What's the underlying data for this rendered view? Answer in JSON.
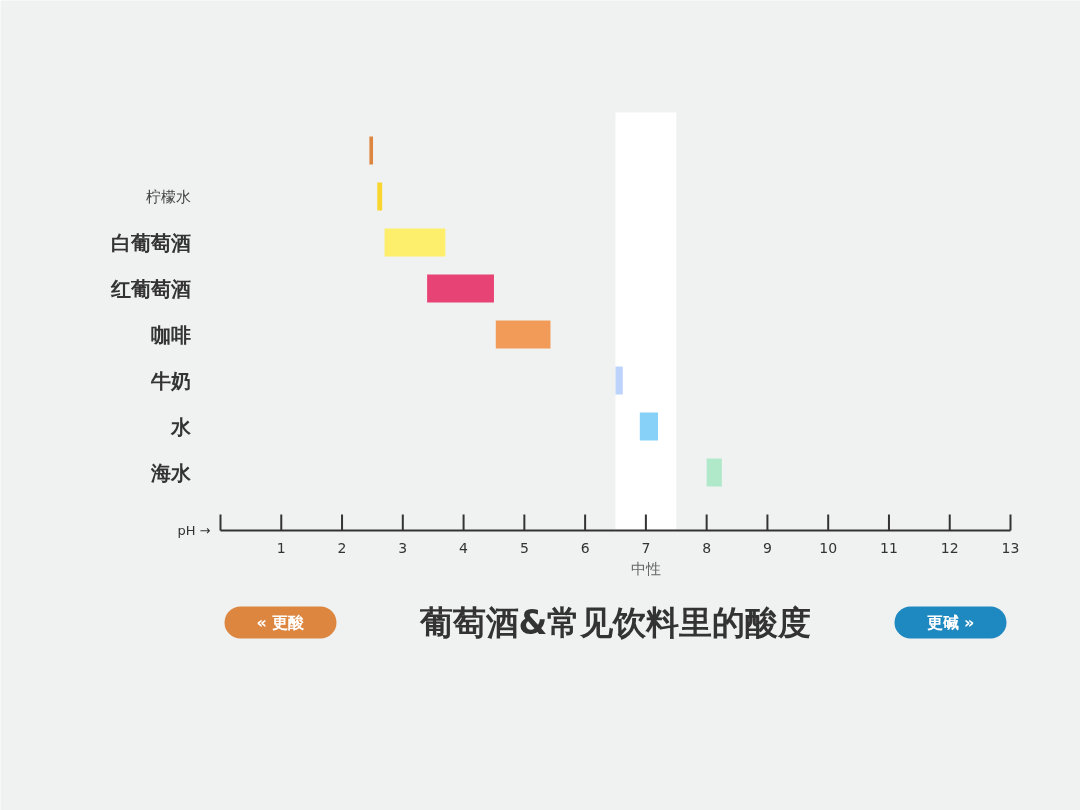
{
  "chart_data": {
    "type": "bar",
    "orientation": "horizontal",
    "title": "葡萄酒&常见饮料里的酸度",
    "xlabel": "pH →",
    "categories": [
      null,
      "柠檬水",
      "白葡萄酒",
      "红葡萄酒",
      "咖啡",
      "牛奶",
      "水",
      "海水"
    ],
    "base": [
      2.45,
      2.58,
      2.7,
      3.4,
      4.53,
      6.5,
      6.9,
      8.0
    ],
    "values": [
      0.06,
      0.08,
      1.0,
      1.1,
      0.9,
      0.12,
      0.3,
      0.25
    ],
    "colors": [
      "#dd8640",
      "#f9d62e",
      "#fdef6c",
      "#e84375",
      "#f29a58",
      "#bcd4fb",
      "#87d0f7",
      "#b0e9c9"
    ],
    "xlim": [
      0,
      13
    ],
    "xticks": [
      {
        "value": 0,
        "label": null
      },
      1,
      2,
      3,
      4,
      5,
      6,
      7,
      8,
      9,
      10,
      11,
      12,
      13
    ],
    "bands": [
      {
        "axis": "x",
        "from": 6.5,
        "to": 7.5,
        "label": "中性",
        "color": "#ffffff"
      }
    ],
    "annotations": [
      "« 更酸",
      "更碱 »"
    ]
  }
}
